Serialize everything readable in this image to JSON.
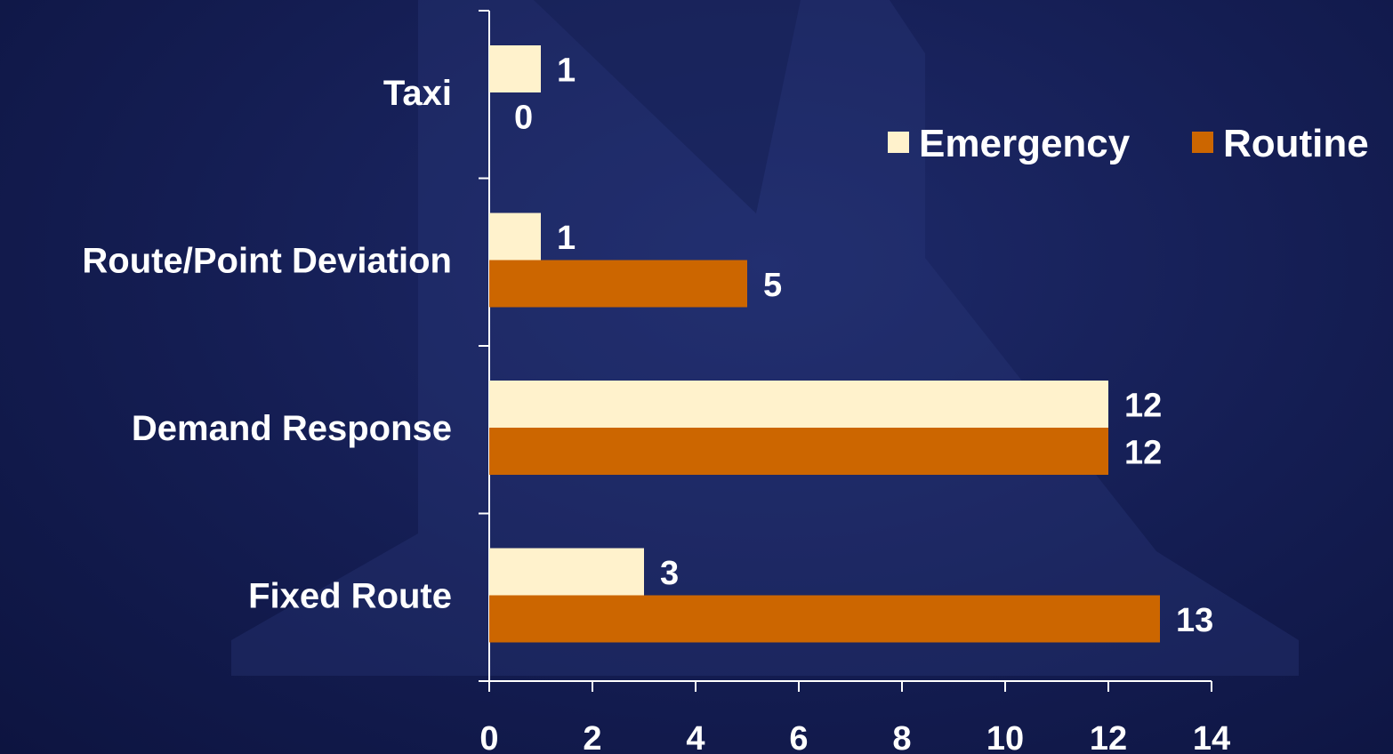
{
  "chart_data": {
    "type": "bar",
    "orientation": "horizontal",
    "categories": [
      "Taxi",
      "Route/Point Deviation",
      "Demand Response",
      "Fixed Route"
    ],
    "series": [
      {
        "name": "Emergency",
        "values": [
          1,
          1,
          12,
          3
        ],
        "color": "#fff2cc"
      },
      {
        "name": "Routine",
        "values": [
          0,
          5,
          12,
          13
        ],
        "color": "#cc6600"
      }
    ],
    "xlim": [
      0,
      14
    ],
    "xticks": [
      "0",
      "2",
      "4",
      "6",
      "8",
      "10",
      "12",
      "14"
    ],
    "title": "",
    "xlabel": "",
    "ylabel": "",
    "legend": "top-right",
    "grid": false
  },
  "legend": {
    "emergency_label": "Emergency",
    "routine_label": "Routine"
  },
  "colors": {
    "emergency": "#fff2cc",
    "routine": "#cc6600",
    "text": "#ffffff",
    "axis": "#ffffff"
  }
}
